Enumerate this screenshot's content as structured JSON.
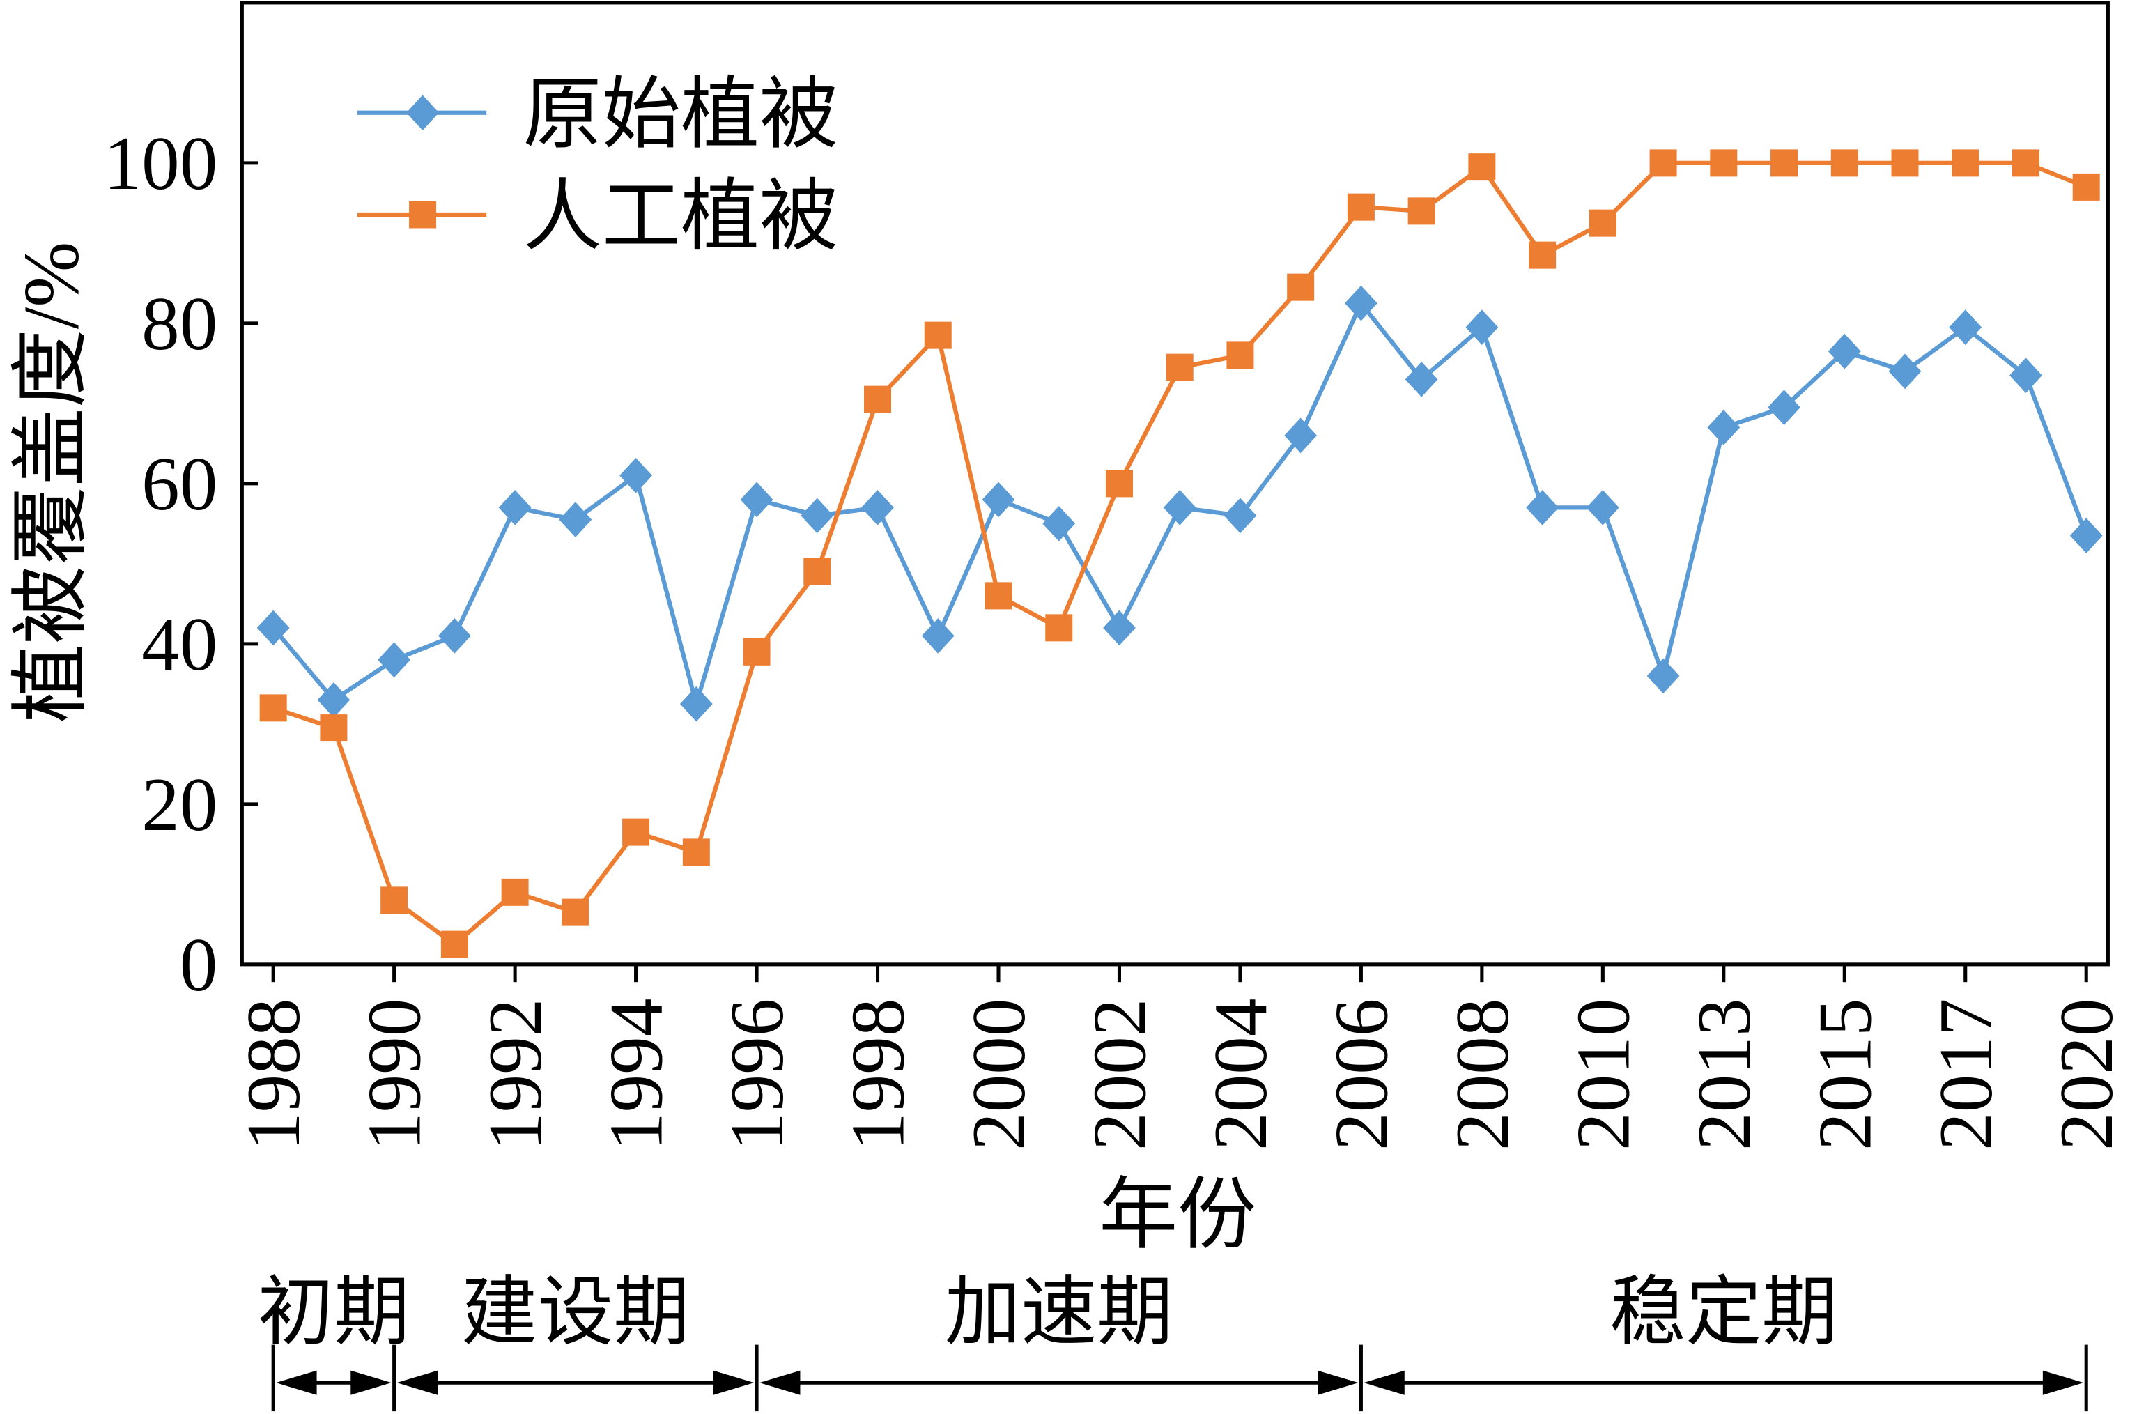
{
  "chart_data": {
    "type": "line",
    "categories": [
      "1988",
      "",
      "1990",
      "",
      "1992",
      "",
      "1994",
      "",
      "1996",
      "",
      "1998",
      "",
      "2000",
      "",
      "2002",
      "",
      "2004",
      "",
      "2006",
      "",
      "2008",
      "",
      "2010",
      "",
      "2013",
      "",
      "2015",
      "",
      "2017",
      "",
      "2020"
    ],
    "xlabel": "年份",
    "ylabel": "植被覆盖度/%",
    "ylim": [
      0,
      120
    ],
    "yticks": [
      0,
      20,
      40,
      60,
      80,
      100
    ],
    "grid": false,
    "legend": "top-left",
    "series": [
      {
        "name": "原始植被",
        "color": "#5b9bd5",
        "marker": "diamond",
        "values": [
          42,
          33,
          38,
          41,
          57,
          55.5,
          61,
          32.5,
          58,
          56,
          57,
          41,
          58,
          55,
          42,
          57,
          56,
          66,
          82.5,
          73,
          79.5,
          57,
          57,
          36,
          67,
          69.5,
          76.5,
          74,
          79.5,
          73.5,
          53.5
        ]
      },
      {
        "name": "人工植被",
        "color": "#ed7d31",
        "marker": "square",
        "values": [
          32,
          29.5,
          8,
          2.5,
          9,
          6.5,
          16.5,
          14,
          39,
          49,
          70.5,
          78.5,
          46,
          42,
          60,
          74.5,
          76,
          84.5,
          94.5,
          94,
          99.5,
          88.5,
          92.5,
          100,
          100,
          100,
          100,
          100,
          100,
          100,
          97
        ]
      }
    ],
    "periods": [
      {
        "label": "初期",
        "span": [
          0,
          2
        ]
      },
      {
        "label": "建设期",
        "span": [
          2,
          8
        ]
      },
      {
        "label": "加速期",
        "span": [
          8,
          18
        ]
      },
      {
        "label": "稳定期",
        "span": [
          18,
          30
        ]
      }
    ]
  }
}
